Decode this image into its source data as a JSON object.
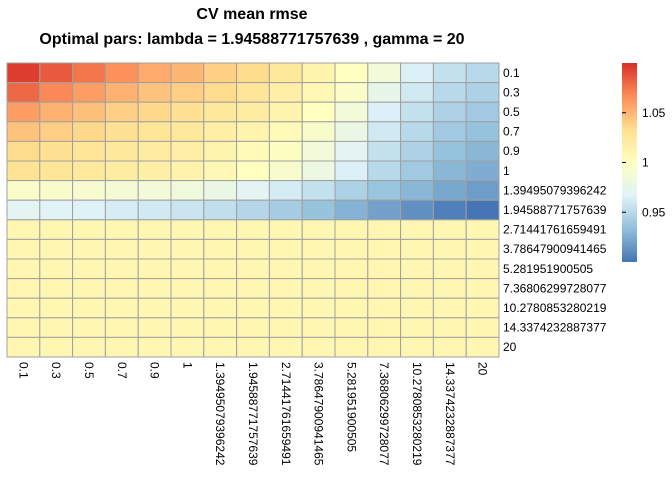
{
  "chart_data": {
    "type": "heatmap",
    "title": "CV mean rmse",
    "subtitle": "Optimal pars: lambda = 1.94588771757639 , gamma = 20",
    "row_labels": [
      "0.1",
      "0.3",
      "0.5",
      "0.7",
      "0.9",
      "1",
      "1.39495079396242",
      "1.94588771757639",
      "2.71441761659491",
      "3.78647900941465",
      "5.281951900505",
      "7.36806299728077",
      "10.2780853280219",
      "14.3374232887377",
      "20"
    ],
    "col_labels": [
      "0.1",
      "0.3",
      "0.5",
      "0.7",
      "0.9",
      "1",
      "1.39495079396242",
      "1.94588771757639",
      "2.71441761659491",
      "3.78647900941465",
      "5.281951900505",
      "7.36806299728077",
      "10.2780853280219",
      "14.3374232887377",
      "20"
    ],
    "values": [
      [
        1.095,
        1.085,
        1.075,
        1.065,
        1.055,
        1.05,
        1.04,
        1.035,
        1.025,
        1.012,
        1.0,
        0.985,
        0.965,
        0.955,
        0.95
      ],
      [
        1.08,
        1.068,
        1.06,
        1.052,
        1.045,
        1.04,
        1.035,
        1.028,
        1.018,
        1.008,
        0.995,
        0.975,
        0.96,
        0.95,
        0.945
      ],
      [
        1.06,
        1.052,
        1.046,
        1.04,
        1.036,
        1.032,
        1.025,
        1.02,
        1.012,
        1.0,
        0.985,
        0.965,
        0.955,
        0.945,
        0.94
      ],
      [
        1.045,
        1.04,
        1.036,
        1.032,
        1.028,
        1.025,
        1.018,
        1.012,
        1.005,
        0.993,
        0.978,
        0.96,
        0.95,
        0.94,
        0.935
      ],
      [
        1.035,
        1.032,
        1.028,
        1.025,
        1.022,
        1.018,
        1.012,
        1.005,
        0.998,
        0.985,
        0.97,
        0.955,
        0.945,
        0.935,
        0.93
      ],
      [
        1.03,
        1.027,
        1.024,
        1.02,
        1.018,
        1.014,
        1.008,
        1.0,
        0.992,
        0.98,
        0.965,
        0.95,
        0.94,
        0.93,
        0.925
      ],
      [
        0.995,
        0.993,
        0.99,
        0.988,
        0.985,
        0.983,
        0.978,
        0.97,
        0.962,
        0.955,
        0.945,
        0.937,
        0.93,
        0.923,
        0.918
      ],
      [
        0.97,
        0.968,
        0.966,
        0.963,
        0.96,
        0.958,
        0.953,
        0.948,
        0.942,
        0.936,
        0.928,
        0.92,
        0.912,
        0.905,
        0.9
      ],
      [
        1.01,
        1.01,
        1.01,
        1.01,
        1.01,
        1.01,
        1.01,
        1.01,
        1.01,
        1.01,
        1.01,
        1.01,
        1.01,
        1.01,
        1.01
      ],
      [
        1.01,
        1.01,
        1.01,
        1.01,
        1.01,
        1.01,
        1.01,
        1.01,
        1.01,
        1.01,
        1.01,
        1.01,
        1.01,
        1.01,
        1.01
      ],
      [
        1.01,
        1.01,
        1.01,
        1.01,
        1.01,
        1.01,
        1.01,
        1.01,
        1.01,
        1.01,
        1.01,
        1.01,
        1.01,
        1.01,
        1.01
      ],
      [
        1.01,
        1.01,
        1.01,
        1.01,
        1.01,
        1.01,
        1.01,
        1.01,
        1.01,
        1.01,
        1.01,
        1.01,
        1.01,
        1.01,
        1.01
      ],
      [
        1.01,
        1.01,
        1.01,
        1.01,
        1.01,
        1.01,
        1.01,
        1.01,
        1.01,
        1.01,
        1.01,
        1.01,
        1.01,
        1.01,
        1.01
      ],
      [
        1.01,
        1.01,
        1.01,
        1.01,
        1.01,
        1.01,
        1.01,
        1.01,
        1.01,
        1.01,
        1.01,
        1.01,
        1.01,
        1.01,
        1.01
      ],
      [
        1.01,
        1.01,
        1.01,
        1.01,
        1.01,
        1.01,
        1.01,
        1.01,
        1.01,
        1.01,
        1.01,
        1.01,
        1.01,
        1.01,
        1.01
      ]
    ],
    "color_range": [
      0.9,
      1.1
    ],
    "legend_ticks": [
      "0.95",
      "1",
      "1.05"
    ],
    "legend_placement": "right",
    "palette": [
      "#4575b4",
      "#91bfdb",
      "#e0f3f8",
      "#ffffbf",
      "#fee090",
      "#fc8d59",
      "#d73027"
    ],
    "cell_border_color": "#a0a0a0"
  }
}
